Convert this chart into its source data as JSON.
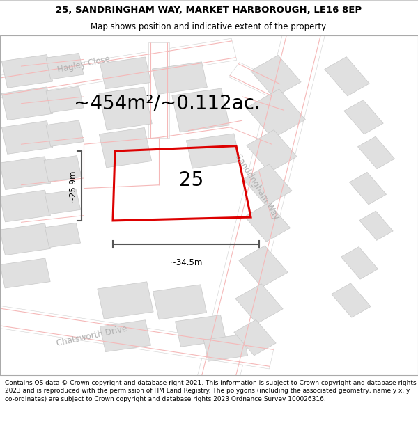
{
  "title_line1": "25, SANDRINGHAM WAY, MARKET HARBOROUGH, LE16 8EP",
  "title_line2": "Map shows position and indicative extent of the property.",
  "area_text": "~454m²/~0.112ac.",
  "property_number": "25",
  "dim_width": "~34.5m",
  "dim_height": "~25.9m",
  "street_label_hagley": "Hagley Close",
  "street_label_sandringham": "Sandringham Way",
  "street_label_chatsworth": "Chatsworth Drive",
  "footer_text": "Contains OS data © Crown copyright and database right 2021. This information is subject to Crown copyright and database rights 2023 and is reproduced with the permission of HM Land Registry. The polygons (including the associated geometry, namely x, y co-ordinates) are subject to Crown copyright and database rights 2023 Ordnance Survey 100026316.",
  "map_bg": "#f2f2f2",
  "building_fill": "#e0e0e0",
  "building_edge": "#c8c8c8",
  "road_fill": "#ffffff",
  "plot_stroke": "#dd0000",
  "dim_color": "#555555",
  "street_label_color": "#b0b0b0",
  "pink_road_color": "#f5b8b8",
  "title_fontsize": 9.5,
  "subtitle_fontsize": 8.5,
  "area_fontsize": 20,
  "property_num_fontsize": 20,
  "street_fontsize": 8.5,
  "footer_fontsize": 6.5
}
